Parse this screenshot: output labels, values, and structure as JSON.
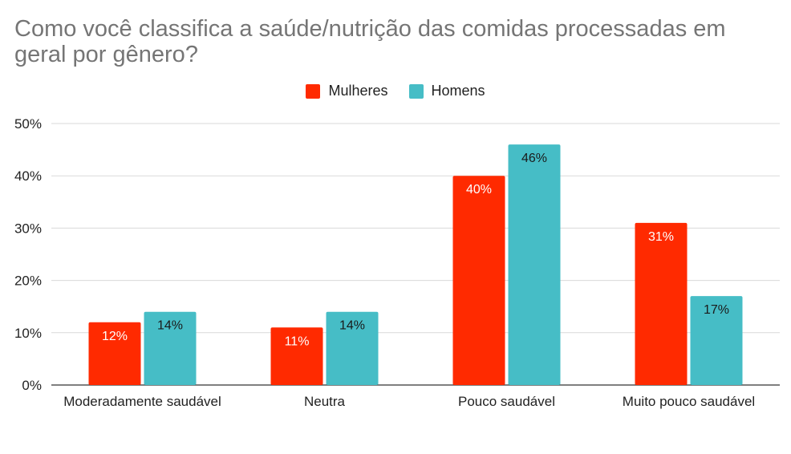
{
  "chart_data": {
    "type": "bar",
    "title": "Como você classifica a saúde/nutrição das comidas processadas em geral por gênero?",
    "categories": [
      "Moderadamente saudável",
      "Neutra",
      "Pouco saudável",
      "Muito pouco saudável"
    ],
    "series": [
      {
        "name": "Mulheres",
        "values": [
          12,
          11,
          40,
          31
        ],
        "labels": [
          "12%",
          "11%",
          "40%",
          "31%"
        ],
        "color": "#ff2a00",
        "label_color": "#ffffff"
      },
      {
        "name": "Homens",
        "values": [
          14,
          14,
          46,
          17
        ],
        "labels": [
          "14%",
          "14%",
          "46%",
          "17%"
        ],
        "color": "#46bdc6",
        "label_color": "#1a1a1a"
      }
    ],
    "ylim": [
      0,
      50
    ],
    "yticks": [
      0,
      10,
      20,
      30,
      40,
      50
    ],
    "ytick_labels": [
      "0%",
      "10%",
      "20%",
      "30%",
      "40%",
      "50%"
    ],
    "grid": true,
    "legend_position": "top-center",
    "xlabel": "",
    "ylabel": ""
  }
}
